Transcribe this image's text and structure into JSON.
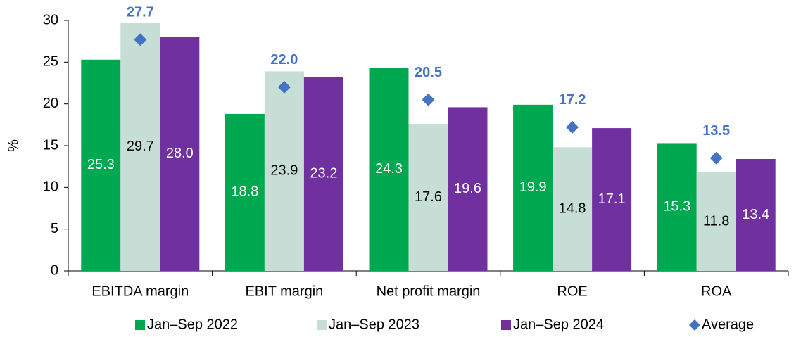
{
  "chart_data": {
    "type": "bar",
    "y_label": "%",
    "categories": [
      "EBITDA margin",
      "EBIT margin",
      "Net profit margin",
      "ROE",
      "ROA"
    ],
    "series": [
      {
        "name": "Jan–Sep 2022",
        "color": "#00a94f",
        "values": [
          25.3,
          18.8,
          24.3,
          19.9,
          15.3
        ],
        "value_labels": [
          "25.3",
          "18.8",
          "24.3",
          "19.9",
          "15.3"
        ],
        "label_color": "#ffffff"
      },
      {
        "name": "Jan–Sep 2023",
        "color": "#c6ded5",
        "values": [
          29.7,
          23.9,
          17.6,
          14.8,
          11.8
        ],
        "value_labels": [
          "29.7",
          "23.9",
          "17.6",
          "14.8",
          "11.8"
        ],
        "label_color": "#000000"
      },
      {
        "name": "Jan–Sep 2024",
        "color": "#7030a0",
        "values": [
          28.0,
          23.2,
          19.6,
          17.1,
          13.4
        ],
        "value_labels": [
          "28.0",
          "23.2",
          "19.6",
          "17.1",
          "13.4"
        ],
        "label_color": "#ffffff"
      },
      {
        "name": "Average",
        "type": "marker",
        "marker": "diamond",
        "color": "#4472c4",
        "values": [
          27.7,
          22.0,
          20.5,
          17.2,
          13.5
        ],
        "value_labels": [
          "27.7",
          "22.0",
          "20.5",
          "17.2",
          "13.5"
        ],
        "label_color": "#4472c4"
      }
    ],
    "ylim": [
      0,
      30
    ],
    "yticks": [
      0,
      5,
      10,
      15,
      20,
      25,
      30
    ],
    "grid": false,
    "legend": "bottom"
  }
}
